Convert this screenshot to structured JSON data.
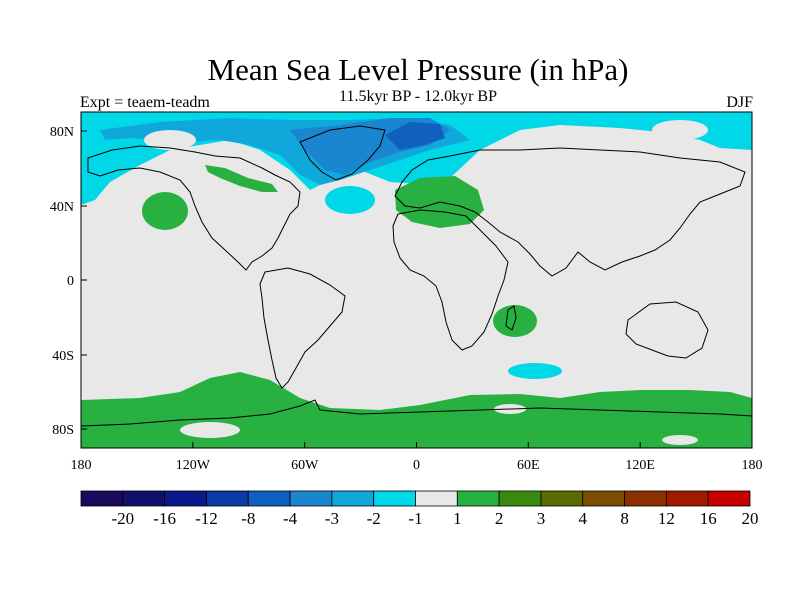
{
  "title": "Mean Sea Level Pressure (in hPa)",
  "subtitle": "11.5kyr BP - 12.0kyr BP",
  "left_label": "Expt = teaem-teadm",
  "right_label": "DJF",
  "axes": {
    "x_ticks": [
      "180",
      "120W",
      "60W",
      "0",
      "60E",
      "120E",
      "180"
    ],
    "y_ticks": [
      "80N",
      "40N",
      "0",
      "40S",
      "80S"
    ]
  },
  "colorbar": {
    "labels": [
      "-20",
      "-16",
      "-12",
      "-8",
      "-4",
      "-3",
      "-2",
      "-1",
      "1",
      "2",
      "3",
      "4",
      "8",
      "12",
      "16",
      "20"
    ],
    "colors": [
      "#1a0a5e",
      "#10106e",
      "#0a1a8a",
      "#0a3aa8",
      "#1060c0",
      "#1a86d0",
      "#10a8da",
      "#00d8e8",
      "#e8e8e8",
      "#28b040",
      "#3a8a10",
      "#5a6a00",
      "#7a5000",
      "#8c3000",
      "#a01a00",
      "#c80000"
    ]
  }
}
